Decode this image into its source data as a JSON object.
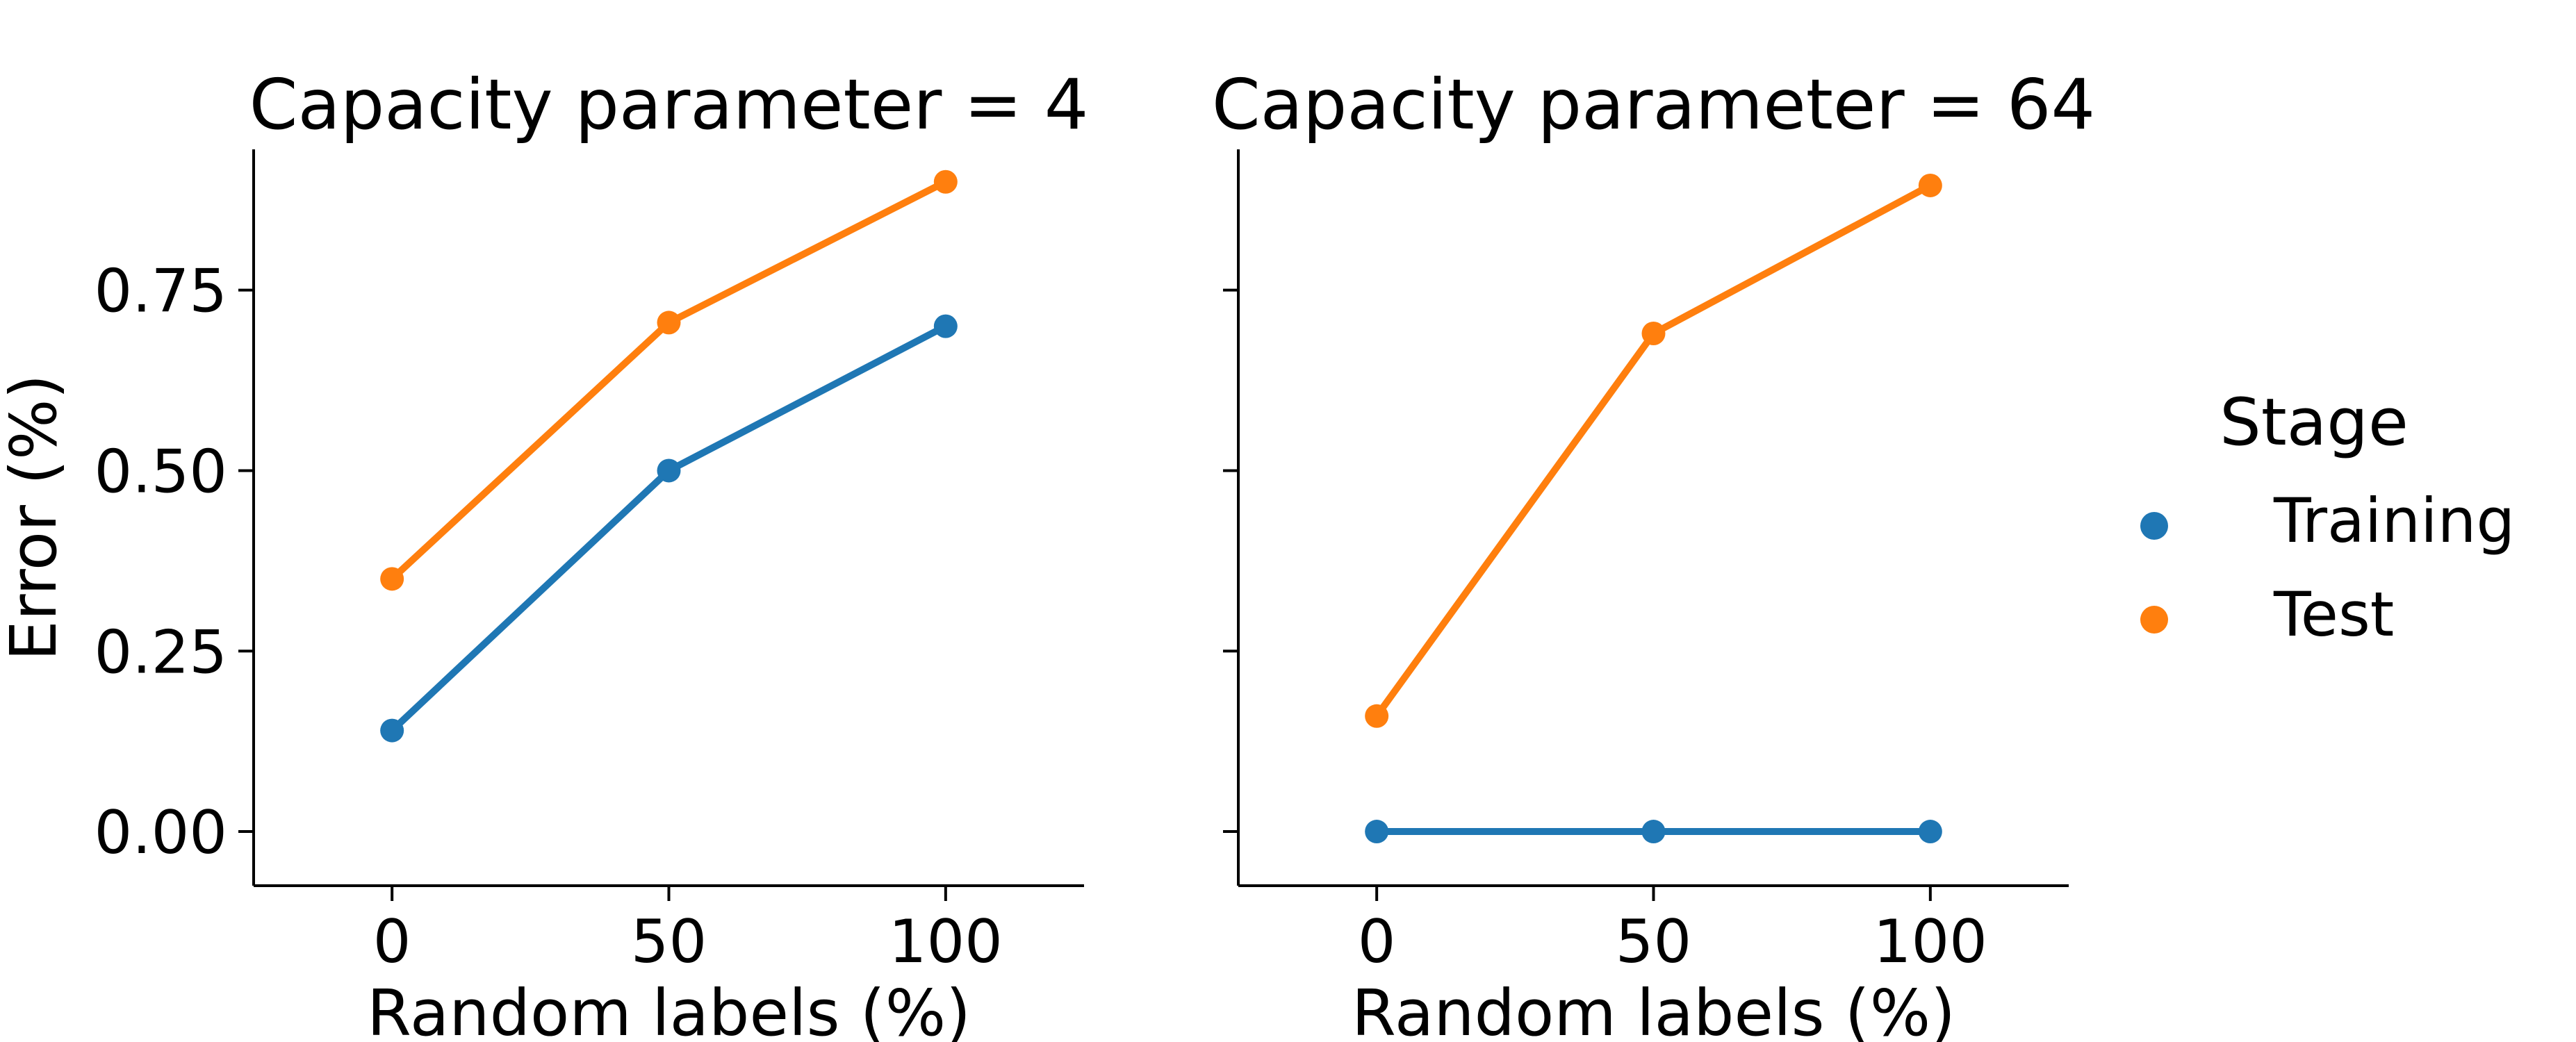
{
  "chart_data": [
    {
      "type": "line",
      "title": "Capacity parameter = 4",
      "xlabel": "Random labels (%)",
      "ylabel": "Error (%)",
      "x": [
        0,
        50,
        100
      ],
      "xticks": [
        "0",
        "50",
        "100"
      ],
      "xlim": [
        -25,
        125
      ],
      "ylim": [
        -0.075,
        0.945
      ],
      "yticks": [
        "0.00",
        "0.25",
        "0.50",
        "0.75"
      ],
      "grid": false,
      "series": [
        {
          "name": "Training",
          "color": "#1f77b4",
          "values": [
            0.14,
            0.5,
            0.7
          ]
        },
        {
          "name": "Test",
          "color": "#ff7f0e",
          "values": [
            0.35,
            0.705,
            0.9
          ]
        }
      ]
    },
    {
      "type": "line",
      "title": "Capacity parameter = 64",
      "xlabel": "Random labels (%)",
      "ylabel": "",
      "x": [
        0,
        50,
        100
      ],
      "xticks": [
        "0",
        "50",
        "100"
      ],
      "xlim": [
        -25,
        125
      ],
      "ylim": [
        -0.075,
        0.945
      ],
      "yticks": [
        "0.00",
        "0.25",
        "0.50",
        "0.75"
      ],
      "grid": false,
      "series": [
        {
          "name": "Training",
          "color": "#1f77b4",
          "values": [
            0.0,
            0.0,
            0.0
          ]
        },
        {
          "name": "Test",
          "color": "#ff7f0e",
          "values": [
            0.16,
            0.69,
            0.895
          ]
        }
      ]
    }
  ],
  "legend": {
    "title": "Stage",
    "placement": "right",
    "items": [
      {
        "label": "Training",
        "color": "#1f77b4"
      },
      {
        "label": "Test",
        "color": "#ff7f0e"
      }
    ]
  }
}
